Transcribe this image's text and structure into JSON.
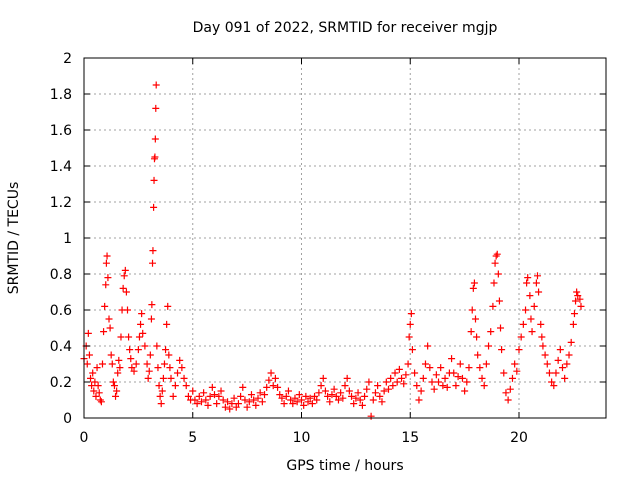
{
  "chart_data": {
    "type": "scatter",
    "title": "Day 091 of 2022, SRMTID for receiver mgjp",
    "xlabel": "GPS time / hours",
    "ylabel": "SRMTID / TECUs",
    "xlim": [
      0,
      24
    ],
    "ylim": [
      0,
      2
    ],
    "x_ticks": [
      0,
      5,
      10,
      15,
      20
    ],
    "x_tick_labels": [
      "0",
      "5",
      "10",
      "15",
      "20"
    ],
    "y_ticks": [
      0,
      0.2,
      0.4,
      0.6,
      0.8,
      1,
      1.2,
      1.4,
      1.6,
      1.8,
      2
    ],
    "y_tick_labels": [
      "0",
      "0.2",
      "0.4",
      "0.6",
      "0.8",
      "1",
      "1.2",
      "1.4",
      "1.6",
      "1.8",
      "2"
    ],
    "grid": true,
    "marker": "+",
    "series": [
      {
        "name": "SRMTID",
        "color": "#ff0000",
        "points": [
          [
            0.0,
            0.33
          ],
          [
            0.1,
            0.4
          ],
          [
            0.15,
            0.3
          ],
          [
            0.2,
            0.47
          ],
          [
            0.25,
            0.35
          ],
          [
            0.3,
            0.22
          ],
          [
            0.35,
            0.18
          ],
          [
            0.4,
            0.25
          ],
          [
            0.45,
            0.15
          ],
          [
            0.5,
            0.2
          ],
          [
            0.55,
            0.12
          ],
          [
            0.6,
            0.28
          ],
          [
            0.65,
            0.18
          ],
          [
            0.7,
            0.14
          ],
          [
            0.75,
            0.1
          ],
          [
            0.8,
            0.09
          ],
          [
            0.85,
            0.3
          ],
          [
            0.9,
            0.48
          ],
          [
            0.95,
            0.62
          ],
          [
            1.0,
            0.74
          ],
          [
            1.03,
            0.86
          ],
          [
            1.06,
            0.9
          ],
          [
            1.1,
            0.78
          ],
          [
            1.15,
            0.55
          ],
          [
            1.2,
            0.5
          ],
          [
            1.25,
            0.35
          ],
          [
            1.3,
            0.3
          ],
          [
            1.35,
            0.2
          ],
          [
            1.4,
            0.18
          ],
          [
            1.45,
            0.12
          ],
          [
            1.5,
            0.15
          ],
          [
            1.55,
            0.25
          ],
          [
            1.6,
            0.32
          ],
          [
            1.65,
            0.28
          ],
          [
            1.7,
            0.45
          ],
          [
            1.75,
            0.6
          ],
          [
            1.8,
            0.72
          ],
          [
            1.85,
            0.79
          ],
          [
            1.9,
            0.82
          ],
          [
            1.95,
            0.7
          ],
          [
            2.0,
            0.6
          ],
          [
            2.05,
            0.45
          ],
          [
            2.1,
            0.38
          ],
          [
            2.15,
            0.33
          ],
          [
            2.2,
            0.28
          ],
          [
            2.3,
            0.26
          ],
          [
            2.4,
            0.3
          ],
          [
            2.5,
            0.38
          ],
          [
            2.55,
            0.45
          ],
          [
            2.6,
            0.52
          ],
          [
            2.65,
            0.58
          ],
          [
            2.7,
            0.47
          ],
          [
            2.8,
            0.4
          ],
          [
            2.9,
            0.3
          ],
          [
            2.95,
            0.22
          ],
          [
            3.0,
            0.26
          ],
          [
            3.05,
            0.35
          ],
          [
            3.1,
            0.55
          ],
          [
            3.12,
            0.63
          ],
          [
            3.15,
            0.86
          ],
          [
            3.17,
            0.93
          ],
          [
            3.2,
            1.17
          ],
          [
            3.22,
            1.32
          ],
          [
            3.24,
            1.44
          ],
          [
            3.26,
            1.45
          ],
          [
            3.28,
            1.55
          ],
          [
            3.3,
            1.72
          ],
          [
            3.32,
            1.85
          ],
          [
            3.35,
            0.4
          ],
          [
            3.4,
            0.28
          ],
          [
            3.45,
            0.18
          ],
          [
            3.5,
            0.12
          ],
          [
            3.55,
            0.08
          ],
          [
            3.6,
            0.15
          ],
          [
            3.65,
            0.22
          ],
          [
            3.7,
            0.3
          ],
          [
            3.75,
            0.38
          ],
          [
            3.8,
            0.52
          ],
          [
            3.85,
            0.62
          ],
          [
            3.9,
            0.35
          ],
          [
            3.95,
            0.28
          ],
          [
            4.0,
            0.22
          ],
          [
            4.1,
            0.12
          ],
          [
            4.2,
            0.18
          ],
          [
            4.3,
            0.25
          ],
          [
            4.4,
            0.32
          ],
          [
            4.5,
            0.28
          ],
          [
            4.6,
            0.22
          ],
          [
            4.7,
            0.18
          ],
          [
            4.8,
            0.12
          ],
          [
            4.9,
            0.1
          ],
          [
            5.0,
            0.15
          ],
          [
            5.1,
            0.1
          ],
          [
            5.2,
            0.08
          ],
          [
            5.3,
            0.12
          ],
          [
            5.4,
            0.09
          ],
          [
            5.5,
            0.14
          ],
          [
            5.6,
            0.1
          ],
          [
            5.7,
            0.07
          ],
          [
            5.8,
            0.12
          ],
          [
            5.9,
            0.17
          ],
          [
            6.0,
            0.13
          ],
          [
            6.1,
            0.08
          ],
          [
            6.2,
            0.12
          ],
          [
            6.3,
            0.15
          ],
          [
            6.4,
            0.1
          ],
          [
            6.5,
            0.06
          ],
          [
            6.6,
            0.09
          ],
          [
            6.7,
            0.05
          ],
          [
            6.8,
            0.08
          ],
          [
            6.9,
            0.11
          ],
          [
            7.0,
            0.06
          ],
          [
            7.1,
            0.08
          ],
          [
            7.2,
            0.12
          ],
          [
            7.3,
            0.17
          ],
          [
            7.4,
            0.1
          ],
          [
            7.5,
            0.06
          ],
          [
            7.6,
            0.09
          ],
          [
            7.7,
            0.13
          ],
          [
            7.8,
            0.1
          ],
          [
            7.9,
            0.07
          ],
          [
            8.0,
            0.11
          ],
          [
            8.1,
            0.14
          ],
          [
            8.2,
            0.09
          ],
          [
            8.3,
            0.13
          ],
          [
            8.4,
            0.17
          ],
          [
            8.5,
            0.21
          ],
          [
            8.6,
            0.25
          ],
          [
            8.7,
            0.18
          ],
          [
            8.8,
            0.22
          ],
          [
            8.9,
            0.17
          ],
          [
            9.0,
            0.13
          ],
          [
            9.1,
            0.11
          ],
          [
            9.2,
            0.08
          ],
          [
            9.3,
            0.12
          ],
          [
            9.4,
            0.15
          ],
          [
            9.5,
            0.1
          ],
          [
            9.6,
            0.08
          ],
          [
            9.7,
            0.11
          ],
          [
            9.8,
            0.09
          ],
          [
            9.9,
            0.13
          ],
          [
            10.0,
            0.1
          ],
          [
            10.1,
            0.07
          ],
          [
            10.2,
            0.12
          ],
          [
            10.3,
            0.09
          ],
          [
            10.4,
            0.11
          ],
          [
            10.5,
            0.08
          ],
          [
            10.6,
            0.12
          ],
          [
            10.7,
            0.1
          ],
          [
            10.8,
            0.14
          ],
          [
            10.9,
            0.18
          ],
          [
            11.0,
            0.22
          ],
          [
            11.1,
            0.15
          ],
          [
            11.2,
            0.12
          ],
          [
            11.3,
            0.09
          ],
          [
            11.4,
            0.13
          ],
          [
            11.5,
            0.16
          ],
          [
            11.6,
            0.12
          ],
          [
            11.7,
            0.1
          ],
          [
            11.8,
            0.14
          ],
          [
            11.9,
            0.11
          ],
          [
            12.0,
            0.18
          ],
          [
            12.1,
            0.22
          ],
          [
            12.2,
            0.15
          ],
          [
            12.3,
            0.12
          ],
          [
            12.4,
            0.08
          ],
          [
            12.5,
            0.11
          ],
          [
            12.6,
            0.14
          ],
          [
            12.7,
            0.1
          ],
          [
            12.8,
            0.07
          ],
          [
            12.9,
            0.12
          ],
          [
            13.0,
            0.16
          ],
          [
            13.1,
            0.2
          ],
          [
            13.2,
            0.01
          ],
          [
            13.3,
            0.1
          ],
          [
            13.4,
            0.14
          ],
          [
            13.5,
            0.18
          ],
          [
            13.6,
            0.12
          ],
          [
            13.7,
            0.09
          ],
          [
            13.8,
            0.15
          ],
          [
            13.9,
            0.2
          ],
          [
            14.0,
            0.16
          ],
          [
            14.1,
            0.22
          ],
          [
            14.2,
            0.18
          ],
          [
            14.3,
            0.25
          ],
          [
            14.4,
            0.2
          ],
          [
            14.5,
            0.27
          ],
          [
            14.6,
            0.22
          ],
          [
            14.7,
            0.19
          ],
          [
            14.8,
            0.24
          ],
          [
            14.9,
            0.3
          ],
          [
            14.95,
            0.45
          ],
          [
            15.0,
            0.52
          ],
          [
            15.05,
            0.58
          ],
          [
            15.1,
            0.38
          ],
          [
            15.2,
            0.25
          ],
          [
            15.3,
            0.18
          ],
          [
            15.4,
            0.1
          ],
          [
            15.5,
            0.15
          ],
          [
            15.6,
            0.22
          ],
          [
            15.7,
            0.3
          ],
          [
            15.8,
            0.4
          ],
          [
            15.9,
            0.28
          ],
          [
            16.0,
            0.2
          ],
          [
            16.1,
            0.16
          ],
          [
            16.2,
            0.24
          ],
          [
            16.3,
            0.2
          ],
          [
            16.4,
            0.28
          ],
          [
            16.5,
            0.18
          ],
          [
            16.6,
            0.22
          ],
          [
            16.7,
            0.17
          ],
          [
            16.8,
            0.25
          ],
          [
            16.9,
            0.33
          ],
          [
            17.0,
            0.25
          ],
          [
            17.1,
            0.18
          ],
          [
            17.2,
            0.23
          ],
          [
            17.3,
            0.3
          ],
          [
            17.4,
            0.22
          ],
          [
            17.5,
            0.15
          ],
          [
            17.6,
            0.2
          ],
          [
            17.7,
            0.28
          ],
          [
            17.8,
            0.48
          ],
          [
            17.85,
            0.6
          ],
          [
            17.9,
            0.72
          ],
          [
            17.95,
            0.75
          ],
          [
            18.0,
            0.55
          ],
          [
            18.05,
            0.45
          ],
          [
            18.1,
            0.35
          ],
          [
            18.2,
            0.28
          ],
          [
            18.3,
            0.22
          ],
          [
            18.4,
            0.18
          ],
          [
            18.5,
            0.3
          ],
          [
            18.6,
            0.4
          ],
          [
            18.7,
            0.48
          ],
          [
            18.8,
            0.62
          ],
          [
            18.85,
            0.75
          ],
          [
            18.9,
            0.86
          ],
          [
            18.95,
            0.9
          ],
          [
            19.0,
            0.91
          ],
          [
            19.05,
            0.8
          ],
          [
            19.1,
            0.65
          ],
          [
            19.15,
            0.5
          ],
          [
            19.2,
            0.38
          ],
          [
            19.3,
            0.25
          ],
          [
            19.4,
            0.14
          ],
          [
            19.5,
            0.1
          ],
          [
            19.6,
            0.16
          ],
          [
            19.7,
            0.22
          ],
          [
            19.8,
            0.3
          ],
          [
            19.9,
            0.26
          ],
          [
            20.0,
            0.38
          ],
          [
            20.1,
            0.45
          ],
          [
            20.2,
            0.52
          ],
          [
            20.3,
            0.6
          ],
          [
            20.35,
            0.75
          ],
          [
            20.4,
            0.78
          ],
          [
            20.5,
            0.68
          ],
          [
            20.55,
            0.55
          ],
          [
            20.6,
            0.48
          ],
          [
            20.7,
            0.62
          ],
          [
            20.8,
            0.75
          ],
          [
            20.85,
            0.79
          ],
          [
            20.9,
            0.7
          ],
          [
            21.0,
            0.52
          ],
          [
            21.05,
            0.45
          ],
          [
            21.1,
            0.4
          ],
          [
            21.2,
            0.35
          ],
          [
            21.3,
            0.3
          ],
          [
            21.4,
            0.25
          ],
          [
            21.5,
            0.2
          ],
          [
            21.6,
            0.18
          ],
          [
            21.7,
            0.25
          ],
          [
            21.8,
            0.32
          ],
          [
            21.9,
            0.38
          ],
          [
            22.0,
            0.28
          ],
          [
            22.1,
            0.22
          ],
          [
            22.2,
            0.3
          ],
          [
            22.3,
            0.35
          ],
          [
            22.4,
            0.42
          ],
          [
            22.5,
            0.52
          ],
          [
            22.55,
            0.58
          ],
          [
            22.6,
            0.65
          ],
          [
            22.65,
            0.7
          ],
          [
            22.7,
            0.68
          ],
          [
            22.8,
            0.66
          ],
          [
            22.85,
            0.62
          ]
        ]
      }
    ]
  }
}
